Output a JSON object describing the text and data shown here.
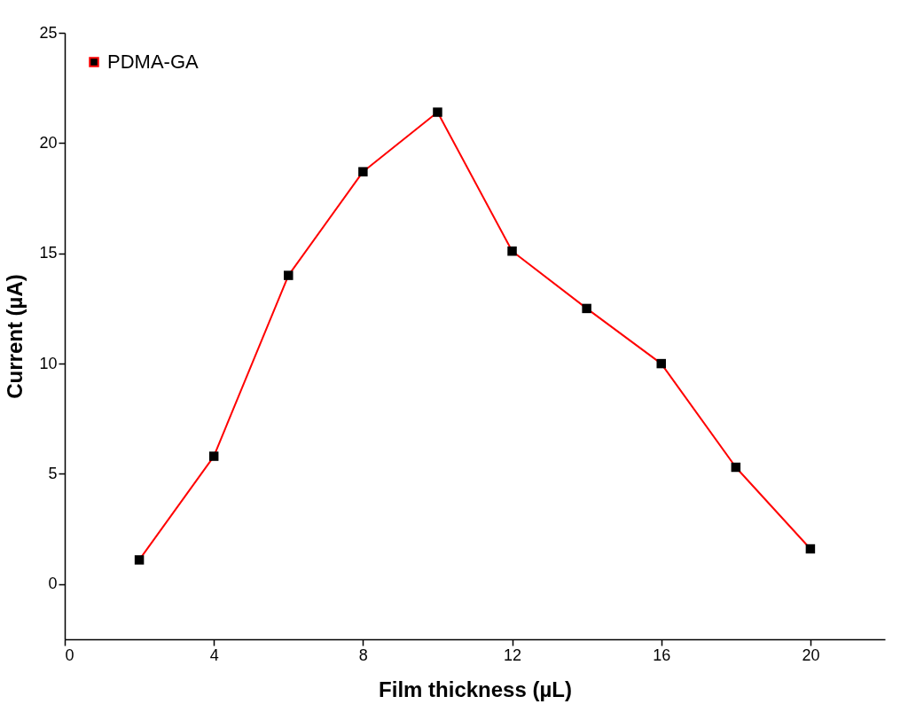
{
  "chart_data": {
    "type": "line",
    "xlabel": "Film thickness (µL)",
    "ylabel": "Current (µA)",
    "x": [
      2,
      4,
      6,
      8,
      10,
      12,
      14,
      16,
      18,
      20
    ],
    "series": [
      {
        "name": "PDMA-GA",
        "color": "#ff0000",
        "values": [
          1.1,
          5.8,
          14.0,
          18.7,
          21.4,
          15.1,
          12.5,
          10.0,
          5.3,
          1.6
        ]
      }
    ],
    "xlim": [
      0,
      22
    ],
    "xticks": [
      0,
      4,
      8,
      12,
      16,
      20
    ],
    "ylim": [
      -2.5,
      25
    ],
    "yticks": [
      0,
      5,
      10,
      15,
      20,
      25
    ],
    "legend": "top left",
    "marker": "square",
    "line_style": "solid",
    "grid": false
  }
}
